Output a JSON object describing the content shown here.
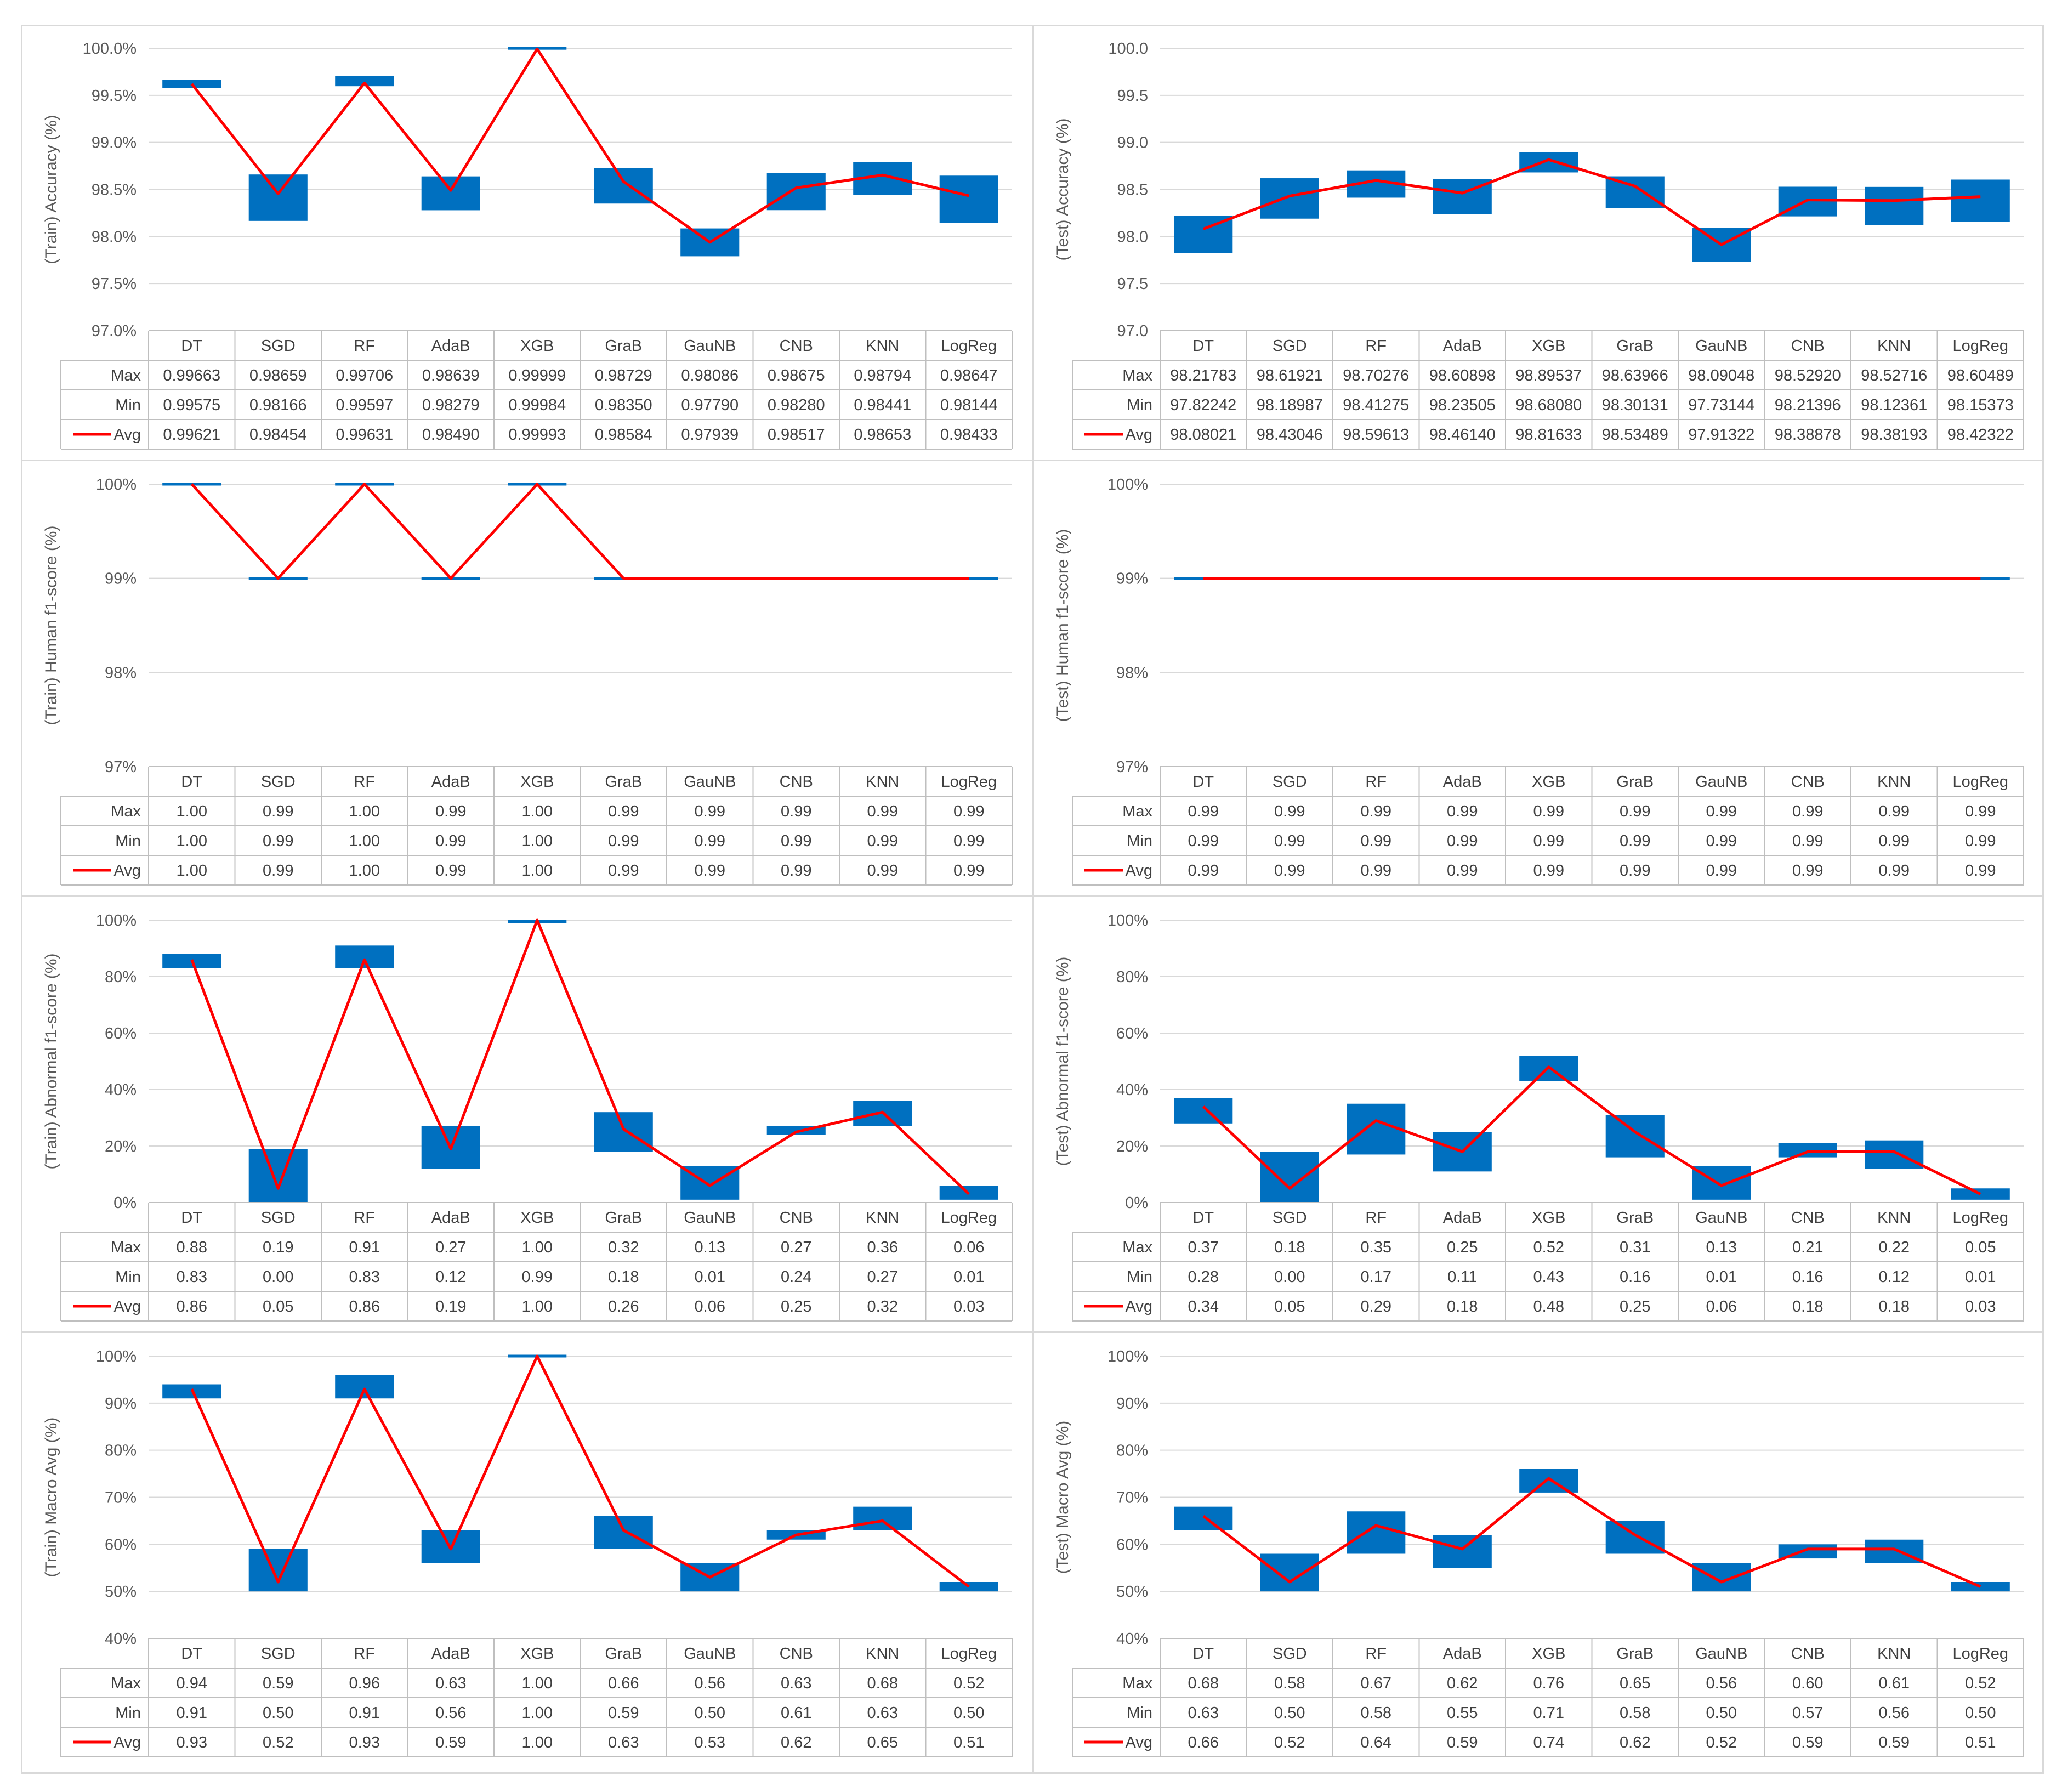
{
  "colors": {
    "box": "#0070c0",
    "avg_line": "#ff0000",
    "grid": "#d9d9d9",
    "table_border": "#bfbfbf",
    "text": "#404040"
  },
  "chart_data": [
    {
      "type": "box",
      "id": "train-accuracy",
      "ylabel": "(Train) Accuracy (%)",
      "ylim": [
        97.0,
        100.0
      ],
      "yticks": [
        97.0,
        97.5,
        98.0,
        98.5,
        99.0,
        99.5,
        100.0
      ],
      "ytick_labels": [
        "97.0%",
        "97.5%",
        "98.0%",
        "98.5%",
        "99.0%",
        "99.5%",
        "100.0%"
      ],
      "value_scale": 100,
      "categories": [
        "DT",
        "SGD",
        "RF",
        "AdaB",
        "XGB",
        "GraB",
        "GauNB",
        "CNB",
        "KNN",
        "LogReg"
      ],
      "rows": [
        {
          "name": "Max",
          "values": [
            "0.99663",
            "0.98659",
            "0.99706",
            "0.98639",
            "0.99999",
            "0.98729",
            "0.98086",
            "0.98675",
            "0.98794",
            "0.98647"
          ]
        },
        {
          "name": "Min",
          "values": [
            "0.99575",
            "0.98166",
            "0.99597",
            "0.98279",
            "0.99984",
            "0.98350",
            "0.97790",
            "0.98280",
            "0.98441",
            "0.98144"
          ]
        },
        {
          "name": "Avg",
          "values": [
            "0.99621",
            "0.98454",
            "0.99631",
            "0.98490",
            "0.99993",
            "0.98584",
            "0.97939",
            "0.98517",
            "0.98653",
            "0.98433"
          ]
        }
      ]
    },
    {
      "type": "box",
      "id": "test-accuracy",
      "ylabel": "(Test) Accuracy (%)",
      "ylim": [
        97.0,
        100.0
      ],
      "yticks": [
        97.0,
        97.5,
        98.0,
        98.5,
        99.0,
        99.5,
        100.0
      ],
      "ytick_labels": [
        "97.0",
        "97.5",
        "98.0",
        "98.5",
        "99.0",
        "99.5",
        "100.0"
      ],
      "value_scale": 1,
      "categories": [
        "DT",
        "SGD",
        "RF",
        "AdaB",
        "XGB",
        "GraB",
        "GauNB",
        "CNB",
        "KNN",
        "LogReg"
      ],
      "rows": [
        {
          "name": "Max",
          "values": [
            "98.21783",
            "98.61921",
            "98.70276",
            "98.60898",
            "98.89537",
            "98.63966",
            "98.09048",
            "98.52920",
            "98.52716",
            "98.60489"
          ]
        },
        {
          "name": "Min",
          "values": [
            "97.82242",
            "98.18987",
            "98.41275",
            "98.23505",
            "98.68080",
            "98.30131",
            "97.73144",
            "98.21396",
            "98.12361",
            "98.15373"
          ]
        },
        {
          "name": "Avg",
          "values": [
            "98.08021",
            "98.43046",
            "98.59613",
            "98.46140",
            "98.81633",
            "98.53489",
            "97.91322",
            "98.38878",
            "98.38193",
            "98.42322"
          ]
        }
      ]
    },
    {
      "type": "box",
      "id": "train-human-f1",
      "ylabel": "(Train) Human f1-score (%)",
      "ylim": [
        97,
        100
      ],
      "yticks": [
        97,
        98,
        99,
        100
      ],
      "ytick_labels": [
        "97%",
        "98%",
        "99%",
        "100%"
      ],
      "value_scale": 100,
      "categories": [
        "DT",
        "SGD",
        "RF",
        "AdaB",
        "XGB",
        "GraB",
        "GauNB",
        "CNB",
        "KNN",
        "LogReg"
      ],
      "rows": [
        {
          "name": "Max",
          "values": [
            "1.00",
            "0.99",
            "1.00",
            "0.99",
            "1.00",
            "0.99",
            "0.99",
            "0.99",
            "0.99",
            "0.99"
          ]
        },
        {
          "name": "Min",
          "values": [
            "1.00",
            "0.99",
            "1.00",
            "0.99",
            "1.00",
            "0.99",
            "0.99",
            "0.99",
            "0.99",
            "0.99"
          ]
        },
        {
          "name": "Avg",
          "values": [
            "1.00",
            "0.99",
            "1.00",
            "0.99",
            "1.00",
            "0.99",
            "0.99",
            "0.99",
            "0.99",
            "0.99"
          ]
        }
      ]
    },
    {
      "type": "box",
      "id": "test-human-f1",
      "ylabel": "(Test) Human f1-score (%)",
      "ylim": [
        97,
        100
      ],
      "yticks": [
        97,
        98,
        99,
        100
      ],
      "ytick_labels": [
        "97%",
        "98%",
        "99%",
        "100%"
      ],
      "value_scale": 100,
      "categories": [
        "DT",
        "SGD",
        "RF",
        "AdaB",
        "XGB",
        "GraB",
        "GauNB",
        "CNB",
        "KNN",
        "LogReg"
      ],
      "rows": [
        {
          "name": "Max",
          "values": [
            "0.99",
            "0.99",
            "0.99",
            "0.99",
            "0.99",
            "0.99",
            "0.99",
            "0.99",
            "0.99",
            "0.99"
          ]
        },
        {
          "name": "Min",
          "values": [
            "0.99",
            "0.99",
            "0.99",
            "0.99",
            "0.99",
            "0.99",
            "0.99",
            "0.99",
            "0.99",
            "0.99"
          ]
        },
        {
          "name": "Avg",
          "values": [
            "0.99",
            "0.99",
            "0.99",
            "0.99",
            "0.99",
            "0.99",
            "0.99",
            "0.99",
            "0.99",
            "0.99"
          ]
        }
      ]
    },
    {
      "type": "box",
      "id": "train-abnormal-f1",
      "ylabel": "(Train) Abnormal f1-score (%)",
      "ylim": [
        0,
        100
      ],
      "yticks": [
        0,
        20,
        40,
        60,
        80,
        100
      ],
      "ytick_labels": [
        "0%",
        "20%",
        "40%",
        "60%",
        "80%",
        "100%"
      ],
      "value_scale": 100,
      "categories": [
        "DT",
        "SGD",
        "RF",
        "AdaB",
        "XGB",
        "GraB",
        "GauNB",
        "CNB",
        "KNN",
        "LogReg"
      ],
      "rows": [
        {
          "name": "Max",
          "values": [
            "0.88",
            "0.19",
            "0.91",
            "0.27",
            "1.00",
            "0.32",
            "0.13",
            "0.27",
            "0.36",
            "0.06"
          ]
        },
        {
          "name": "Min",
          "values": [
            "0.83",
            "0.00",
            "0.83",
            "0.12",
            "0.99",
            "0.18",
            "0.01",
            "0.24",
            "0.27",
            "0.01"
          ]
        },
        {
          "name": "Avg",
          "values": [
            "0.86",
            "0.05",
            "0.86",
            "0.19",
            "1.00",
            "0.26",
            "0.06",
            "0.25",
            "0.32",
            "0.03"
          ]
        }
      ]
    },
    {
      "type": "box",
      "id": "test-abnormal-f1",
      "ylabel": "(Test) Abnormal f1-score (%)",
      "ylim": [
        0,
        100
      ],
      "yticks": [
        0,
        20,
        40,
        60,
        80,
        100
      ],
      "ytick_labels": [
        "0%",
        "20%",
        "40%",
        "60%",
        "80%",
        "100%"
      ],
      "value_scale": 100,
      "categories": [
        "DT",
        "SGD",
        "RF",
        "AdaB",
        "XGB",
        "GraB",
        "GauNB",
        "CNB",
        "KNN",
        "LogReg"
      ],
      "rows": [
        {
          "name": "Max",
          "values": [
            "0.37",
            "0.18",
            "0.35",
            "0.25",
            "0.52",
            "0.31",
            "0.13",
            "0.21",
            "0.22",
            "0.05"
          ]
        },
        {
          "name": "Min",
          "values": [
            "0.28",
            "0.00",
            "0.17",
            "0.11",
            "0.43",
            "0.16",
            "0.01",
            "0.16",
            "0.12",
            "0.01"
          ]
        },
        {
          "name": "Avg",
          "values": [
            "0.34",
            "0.05",
            "0.29",
            "0.18",
            "0.48",
            "0.25",
            "0.06",
            "0.18",
            "0.18",
            "0.03"
          ]
        }
      ]
    },
    {
      "type": "box",
      "id": "train-macro-avg",
      "ylabel": "(Train) Macro Avg (%)",
      "ylim": [
        40,
        100
      ],
      "yticks": [
        40,
        50,
        60,
        70,
        80,
        90,
        100
      ],
      "ytick_labels": [
        "40%",
        "50%",
        "60%",
        "70%",
        "80%",
        "90%",
        "100%"
      ],
      "value_scale": 100,
      "categories": [
        "DT",
        "SGD",
        "RF",
        "AdaB",
        "XGB",
        "GraB",
        "GauNB",
        "CNB",
        "KNN",
        "LogReg"
      ],
      "rows": [
        {
          "name": "Max",
          "values": [
            "0.94",
            "0.59",
            "0.96",
            "0.63",
            "1.00",
            "0.66",
            "0.56",
            "0.63",
            "0.68",
            "0.52"
          ]
        },
        {
          "name": "Min",
          "values": [
            "0.91",
            "0.50",
            "0.91",
            "0.56",
            "1.00",
            "0.59",
            "0.50",
            "0.61",
            "0.63",
            "0.50"
          ]
        },
        {
          "name": "Avg",
          "values": [
            "0.93",
            "0.52",
            "0.93",
            "0.59",
            "1.00",
            "0.63",
            "0.53",
            "0.62",
            "0.65",
            "0.51"
          ]
        }
      ]
    },
    {
      "type": "box",
      "id": "test-macro-avg",
      "ylabel": "(Test) Macro Avg (%)",
      "ylim": [
        40,
        100
      ],
      "yticks": [
        40,
        50,
        60,
        70,
        80,
        90,
        100
      ],
      "ytick_labels": [
        "40%",
        "50%",
        "60%",
        "70%",
        "80%",
        "90%",
        "100%"
      ],
      "value_scale": 100,
      "categories": [
        "DT",
        "SGD",
        "RF",
        "AdaB",
        "XGB",
        "GraB",
        "GauNB",
        "CNB",
        "KNN",
        "LogReg"
      ],
      "rows": [
        {
          "name": "Max",
          "values": [
            "0.68",
            "0.58",
            "0.67",
            "0.62",
            "0.76",
            "0.65",
            "0.56",
            "0.60",
            "0.61",
            "0.52"
          ]
        },
        {
          "name": "Min",
          "values": [
            "0.63",
            "0.50",
            "0.58",
            "0.55",
            "0.71",
            "0.58",
            "0.50",
            "0.57",
            "0.56",
            "0.50"
          ]
        },
        {
          "name": "Avg",
          "values": [
            "0.66",
            "0.52",
            "0.64",
            "0.59",
            "0.74",
            "0.62",
            "0.52",
            "0.59",
            "0.59",
            "0.51"
          ]
        }
      ]
    }
  ]
}
